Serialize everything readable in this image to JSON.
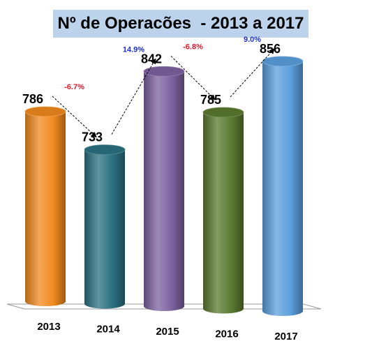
{
  "chart_data": {
    "type": "bar",
    "style": "3d-cylinder",
    "title": "Nº de Operacões  - 2013 a 2017",
    "categories": [
      "2013",
      "2014",
      "2015",
      "2016",
      "2017"
    ],
    "values": [
      786,
      733,
      842,
      785,
      856
    ],
    "colors": [
      "#f08a1e",
      "#2a7080",
      "#7d62a0",
      "#5a7a30",
      "#5b9fdc"
    ],
    "changes": [
      {
        "from": "2013",
        "to": "2014",
        "label": "-6.7%",
        "color": "#e8192b"
      },
      {
        "from": "2014",
        "to": "2015",
        "label": "14.9%",
        "color": "#1c2fd8"
      },
      {
        "from": "2015",
        "to": "2016",
        "label": "-6.8%",
        "color": "#e8192b"
      },
      {
        "from": "2016",
        "to": "2017",
        "label": "9.0%",
        "color": "#1c2fd8"
      }
    ],
    "xlabel": "",
    "ylabel": "",
    "legend": "none",
    "grid": false
  }
}
